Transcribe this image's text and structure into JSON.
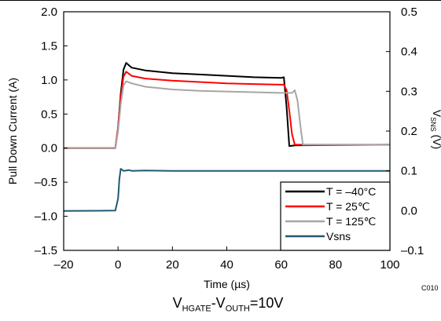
{
  "chart_data": {
    "type": "line",
    "xlabel": "Time (µs)",
    "ylabel": "Pull Down Current (A)",
    "y2label": "VSNS (V)",
    "xlim": [
      -20,
      100
    ],
    "ylim": [
      -1.5,
      2.0
    ],
    "y2lim": [
      -0.1,
      0.5
    ],
    "xticks": [
      -20,
      0,
      20,
      40,
      60,
      80,
      100
    ],
    "yticks": [
      -1.5,
      -1.0,
      -0.5,
      0.0,
      0.5,
      1.0,
      1.5,
      2.0
    ],
    "y2ticks": [
      -0.1,
      0.0,
      0.1,
      0.2,
      0.3,
      0.4,
      0.5
    ],
    "xtick_labels": [
      "–20",
      "0",
      "20",
      "40",
      "60",
      "80",
      "100"
    ],
    "ytick_labels": [
      "–1.5",
      "–1.0",
      "–0.5",
      "0.0",
      "0.5",
      "1.0",
      "1.5",
      "2.0"
    ],
    "y2tick_labels": [
      "–0.1",
      "0.0",
      "0.1",
      "0.2",
      "0.3",
      "0.4",
      "0.5"
    ],
    "legend_position": "bottom-right",
    "grid": false,
    "series": [
      {
        "name": "T = –40°C",
        "axis": "left",
        "color": "#000000",
        "x": [
          -20,
          -1,
          0,
          1,
          2,
          3,
          5,
          10,
          20,
          30,
          40,
          50,
          60,
          61,
          62,
          63,
          65,
          100
        ],
        "y": [
          0.0,
          0.0,
          0.3,
          0.8,
          1.15,
          1.25,
          1.18,
          1.14,
          1.1,
          1.08,
          1.06,
          1.04,
          1.03,
          1.04,
          0.6,
          0.03,
          0.04,
          0.05
        ]
      },
      {
        "name": "T = 25℃",
        "axis": "left",
        "color": "#ff0000",
        "x": [
          -20,
          -1,
          0,
          1,
          2,
          3,
          5,
          10,
          20,
          30,
          40,
          50,
          60,
          61,
          62,
          63,
          64,
          65,
          100
        ],
        "y": [
          0.0,
          0.0,
          0.3,
          0.75,
          1.05,
          1.12,
          1.06,
          1.02,
          0.99,
          0.97,
          0.95,
          0.94,
          0.93,
          0.93,
          0.85,
          0.55,
          0.2,
          0.05,
          0.05
        ]
      },
      {
        "name": "T = 125℃",
        "axis": "left",
        "color": "#a6a6a6",
        "x": [
          -20,
          -1,
          0,
          1,
          2,
          3,
          5,
          10,
          20,
          30,
          40,
          50,
          60,
          64,
          65,
          66,
          67,
          68,
          100
        ],
        "y": [
          0.0,
          0.0,
          0.25,
          0.65,
          0.92,
          0.98,
          0.95,
          0.9,
          0.86,
          0.84,
          0.83,
          0.82,
          0.81,
          0.81,
          0.85,
          0.7,
          0.35,
          0.05,
          0.05
        ]
      },
      {
        "name": "Vsns",
        "axis": "right",
        "color": "#1f5a72",
        "x": [
          -20,
          -1,
          0,
          0.5,
          1,
          2,
          4,
          5,
          10,
          20,
          40,
          60,
          65,
          80,
          100
        ],
        "y": [
          -0.001,
          0.0,
          0.03,
          0.08,
          0.105,
          0.1,
          0.102,
          0.1,
          0.101,
          0.1,
          0.1,
          0.1,
          0.1,
          0.1,
          0.1
        ]
      }
    ]
  },
  "figure_code": "C010",
  "caption": {
    "v1": "V",
    "s1": "HGATE",
    "dash": "-V",
    "s2": "OUTH",
    "rest": "=10V"
  }
}
